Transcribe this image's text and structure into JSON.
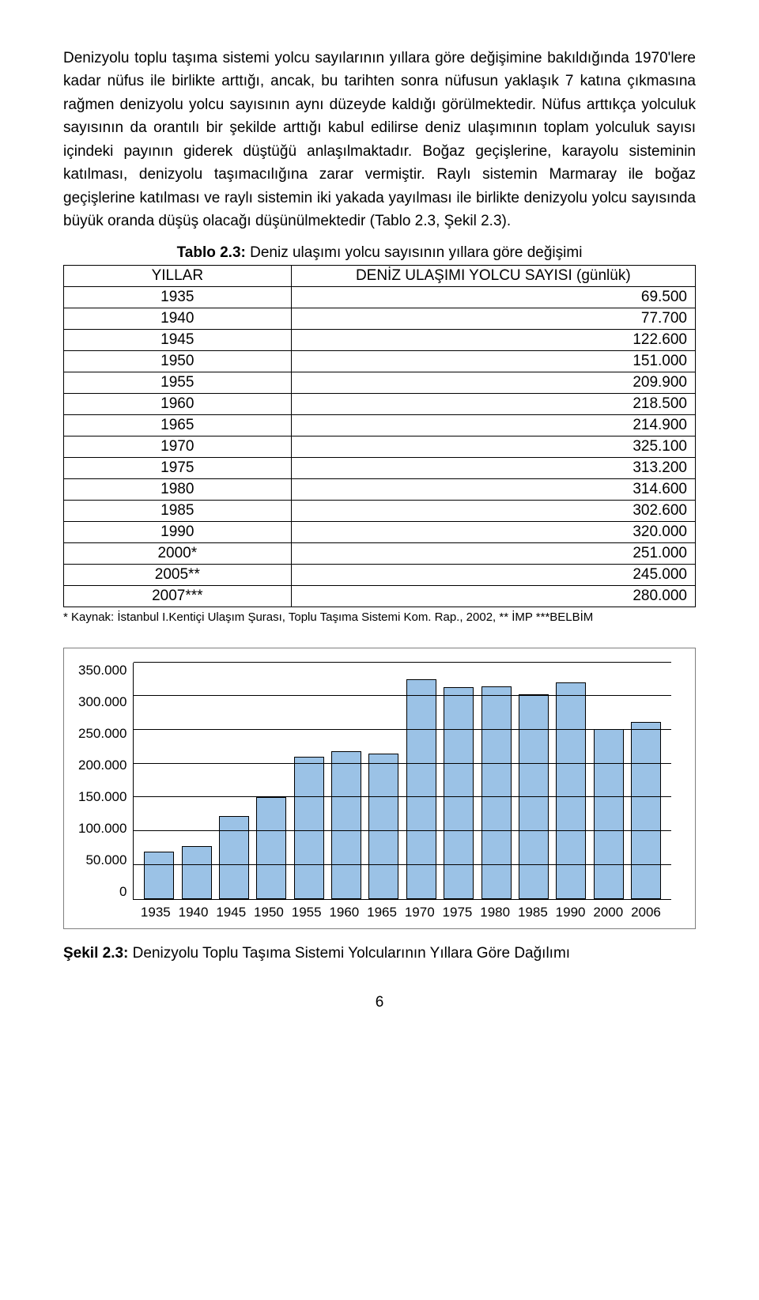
{
  "paragraph": "Denizyolu toplu taşıma sistemi yolcu sayılarının yıllara göre değişimine bakıldığında 1970'lere kadar nüfus ile birlikte arttığı, ancak, bu tarihten sonra nüfusun yaklaşık 7 katına çıkmasına rağmen denizyolu yolcu sayısının aynı düzeyde kaldığı görülmektedir. Nüfus arttıkça yolculuk sayısının da orantılı bir şekilde arttığı kabul edilirse deniz ulaşımının toplam yolculuk sayısı içindeki payının giderek düştüğü anlaşılmaktadır. Boğaz geçişlerine, karayolu sisteminin katılması, denizyolu taşımacılığına zarar vermiştir. Raylı sistemin Marmaray ile boğaz geçişlerine katılması ve raylı sistemin iki yakada yayılması ile birlikte denizyolu yolcu sayısında büyük oranda düşüş olacağı düşünülmektedir (Tablo 2.3, Şekil 2.3).",
  "table": {
    "caption_bold": "Tablo 2.3:",
    "caption_rest": " Deniz ulaşımı yolcu sayısının yıllara göre değişimi",
    "headers": [
      "YILLAR",
      "DENİZ ULAŞIMI YOLCU SAYISI (günlük)"
    ],
    "rows": [
      [
        "1935",
        "69.500"
      ],
      [
        "1940",
        "77.700"
      ],
      [
        "1945",
        "122.600"
      ],
      [
        "1950",
        "151.000"
      ],
      [
        "1955",
        "209.900"
      ],
      [
        "1960",
        "218.500"
      ],
      [
        "1965",
        "214.900"
      ],
      [
        "1970",
        "325.100"
      ],
      [
        "1975",
        "313.200"
      ],
      [
        "1980",
        "314.600"
      ],
      [
        "1985",
        "302.600"
      ],
      [
        "1990",
        "320.000"
      ],
      [
        "2000*",
        "251.000"
      ],
      [
        "2005**",
        "245.000"
      ],
      [
        "2007***",
        "280.000"
      ]
    ],
    "footnote": "* Kaynak: İstanbul I.Kentiçi Ulaşım Şurası, Toplu Taşıma Sistemi Kom. Rap., 2002, ** İMP ***BELBİM"
  },
  "chart": {
    "type": "bar",
    "y_ticks": [
      "350.000",
      "300.000",
      "250.000",
      "200.000",
      "150.000",
      "100.000",
      "50.000",
      "0"
    ],
    "y_max": 350000,
    "grid_values": [
      50000,
      100000,
      150000,
      200000,
      250000,
      300000,
      350000
    ],
    "x_labels": [
      "1935",
      "1940",
      "1945",
      "1950",
      "1955",
      "1960",
      "1965",
      "1970",
      "1975",
      "1980",
      "1985",
      "1990",
      "2000",
      "2006"
    ],
    "values": [
      69500,
      77700,
      122600,
      151000,
      209900,
      218500,
      214900,
      325100,
      313200,
      314600,
      302600,
      320000,
      251000,
      262000
    ],
    "bar_color": "#9bc2e6",
    "bar_border": "#000000",
    "grid_color": "#000000",
    "box_border": "#7f7f7f",
    "background": "#ffffff",
    "tick_fontsize": 17
  },
  "figure_caption_bold": "Şekil 2.3:",
  "figure_caption_rest": " Denizyolu Toplu Taşıma Sistemi Yolcularının Yıllara Göre Dağılımı",
  "page_number": "6"
}
